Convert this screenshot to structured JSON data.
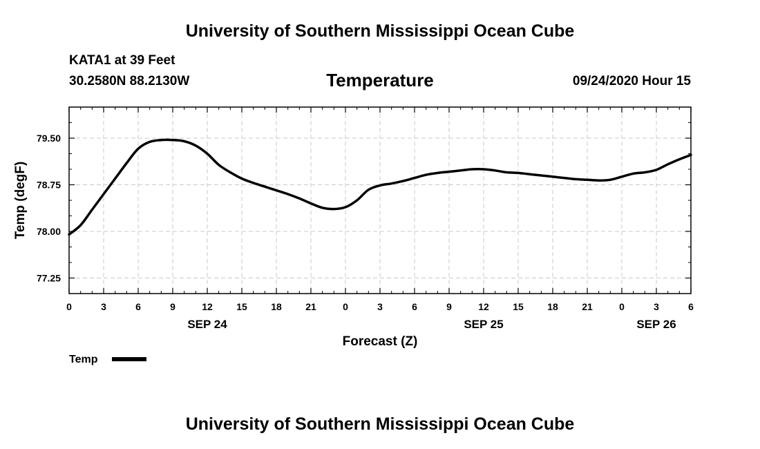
{
  "header": {
    "title": "University of Southern Mississippi Ocean Cube",
    "station": "KATA1 at 39 Feet",
    "coords": "30.2580N 88.2130W",
    "variable": "Temperature",
    "datetime": "09/24/2020 Hour 15"
  },
  "footer": {
    "title": "University of Southern Mississippi Ocean Cube"
  },
  "chart_data": {
    "type": "line",
    "title": "Temperature",
    "xlabel": "Forecast (Z)",
    "ylabel": "Temp (degF)",
    "xlim": [
      0,
      54
    ],
    "ylim": [
      77.0,
      80.0
    ],
    "x_tick_values": [
      0,
      3,
      6,
      9,
      12,
      15,
      18,
      21,
      24,
      27,
      30,
      33,
      36,
      39,
      42,
      45,
      48,
      51,
      54
    ],
    "x_tick_labels": [
      "0",
      "3",
      "6",
      "9",
      "12",
      "15",
      "18",
      "21",
      "0",
      "3",
      "6",
      "9",
      "12",
      "15",
      "18",
      "21",
      "0",
      "3",
      "6"
    ],
    "date_labels": [
      {
        "x": 12,
        "label": "SEP 24"
      },
      {
        "x": 36,
        "label": "SEP 25"
      },
      {
        "x": 51,
        "label": "SEP 26"
      }
    ],
    "y_tick_values": [
      77.25,
      78.0,
      78.75,
      79.5
    ],
    "y_tick_labels": [
      "77.25",
      "78.00",
      "78.75",
      "79.50"
    ],
    "grid": true,
    "legend": "bottom-left",
    "series": [
      {
        "name": "Temp",
        "x": [
          0,
          1,
          2,
          3,
          4,
          5,
          6,
          7,
          8,
          9,
          10,
          11,
          12,
          13,
          14,
          15,
          16,
          17,
          18,
          19,
          20,
          21,
          22,
          23,
          24,
          25,
          26,
          27,
          28,
          29,
          30,
          31,
          32,
          33,
          34,
          35,
          36,
          37,
          38,
          39,
          40,
          41,
          42,
          43,
          44,
          45,
          46,
          47,
          48,
          49,
          50,
          51,
          52,
          53,
          54
        ],
        "values": [
          77.95,
          78.1,
          78.35,
          78.6,
          78.85,
          79.1,
          79.33,
          79.44,
          79.47,
          79.47,
          79.45,
          79.38,
          79.25,
          79.07,
          78.95,
          78.85,
          78.78,
          78.72,
          78.66,
          78.6,
          78.53,
          78.45,
          78.38,
          78.36,
          78.39,
          78.5,
          78.67,
          78.74,
          78.77,
          78.81,
          78.86,
          78.91,
          78.94,
          78.96,
          78.98,
          79.0,
          79.0,
          78.98,
          78.95,
          78.94,
          78.92,
          78.9,
          78.88,
          78.86,
          78.84,
          78.83,
          78.82,
          78.83,
          78.88,
          78.93,
          78.95,
          78.99,
          79.08,
          79.16,
          79.23
        ]
      }
    ]
  }
}
